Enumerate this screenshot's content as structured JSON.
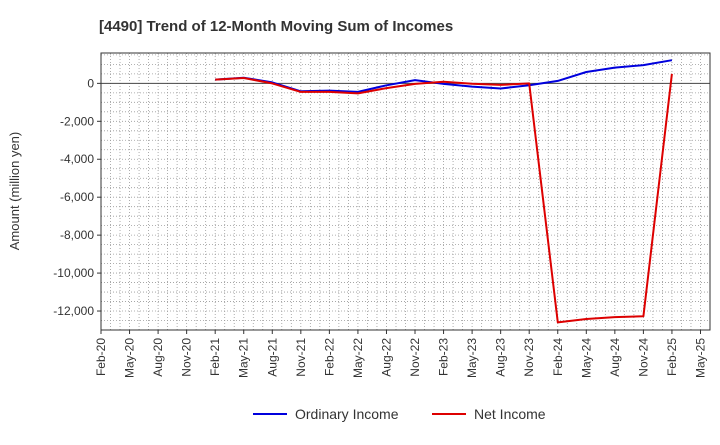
{
  "chart_data": {
    "type": "line",
    "title": "[4490]  Trend of 12-Month Moving Sum of Incomes",
    "xlabel": "",
    "ylabel": "Amount (million yen)",
    "ylim": [
      -13000,
      1600
    ],
    "yticks": [
      0,
      -2000,
      -4000,
      -6000,
      -8000,
      -10000,
      -12000
    ],
    "ytick_labels": [
      "0",
      "-2,000",
      "-4,000",
      "-6,000",
      "-8,000",
      "-10,000",
      "-12,000"
    ],
    "x_start": "Feb-20",
    "n_months": 64,
    "xtick_labels": [
      "Feb-20",
      "May-20",
      "Aug-20",
      "Nov-20",
      "Feb-21",
      "May-21",
      "Aug-21",
      "Nov-21",
      "Feb-22",
      "May-22",
      "Aug-22",
      "Nov-22",
      "Feb-23",
      "May-23",
      "Aug-23",
      "Nov-23",
      "Feb-24",
      "May-24",
      "Aug-24",
      "Nov-24",
      "Feb-25",
      "May-25"
    ],
    "grid": true,
    "legend_position": "bottom",
    "series": [
      {
        "name": "Ordinary Income",
        "color": "#0000dd",
        "x_index": [
          12,
          15,
          18,
          21,
          24,
          27,
          30,
          33,
          36,
          39,
          42,
          45,
          48,
          51,
          54,
          57,
          60
        ],
        "values": [
          200,
          300,
          50,
          -420,
          -380,
          -450,
          -100,
          170,
          -30,
          -170,
          -270,
          -100,
          130,
          600,
          830,
          960,
          1220
        ]
      },
      {
        "name": "Net Income",
        "color": "#dd0000",
        "x_index": [
          12,
          15,
          18,
          21,
          24,
          27,
          30,
          33,
          36,
          39,
          42,
          45,
          48,
          51,
          54,
          57,
          60
        ],
        "values": [
          200,
          280,
          0,
          -450,
          -450,
          -530,
          -250,
          -30,
          80,
          -20,
          -80,
          0,
          -12600,
          -12420,
          -12320,
          -12280,
          500
        ]
      }
    ]
  }
}
